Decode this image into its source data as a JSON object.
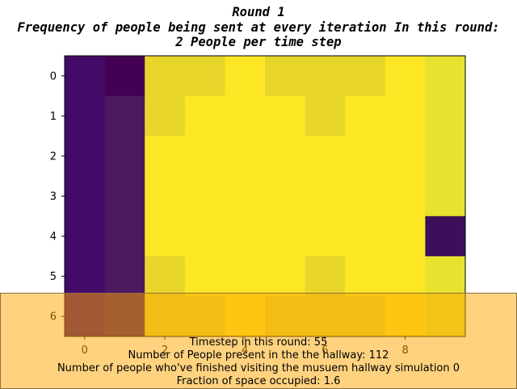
{
  "chart_data": {
    "type": "heatmap",
    "title_lines": [
      "Round 1",
      "Frequency of people being sent at every iteration In this round:",
      "2 People per time step"
    ],
    "x_ticks": [
      0,
      2,
      4,
      6,
      8
    ],
    "y_ticks": [
      0,
      1,
      2,
      3,
      4,
      5,
      6
    ],
    "rows": 7,
    "cols": 10,
    "colors": [
      [
        "#440a68",
        "#440154",
        "#e8d52a",
        "#e8d52a",
        "#fde725",
        "#e8d52a",
        "#e8d52a",
        "#e8d52a",
        "#fde725",
        "#e6e22e"
      ],
      [
        "#440a68",
        "#4d1a60",
        "#e8d52a",
        "#fde725",
        "#fde725",
        "#fde725",
        "#e8d52a",
        "#fde725",
        "#fde725",
        "#e6e22e"
      ],
      [
        "#440a68",
        "#4d1a60",
        "#fde725",
        "#fde725",
        "#fde725",
        "#fde725",
        "#fde725",
        "#fde725",
        "#fde725",
        "#e6e22e"
      ],
      [
        "#440a68",
        "#4d1a60",
        "#fde725",
        "#fde725",
        "#fde725",
        "#fde725",
        "#fde725",
        "#fde725",
        "#fde725",
        "#e6e22e"
      ],
      [
        "#440a68",
        "#4d1a60",
        "#fde725",
        "#fde725",
        "#fde725",
        "#fde725",
        "#fde725",
        "#fde725",
        "#fde725",
        "#3b0f5a"
      ],
      [
        "#440a68",
        "#4d1a60",
        "#e8d52a",
        "#fde725",
        "#fde725",
        "#fde725",
        "#e8d52a",
        "#fde725",
        "#fde725",
        "#e6e22e"
      ],
      [
        "#440a68",
        "#4d1a60",
        "#e8d52a",
        "#e8d52a",
        "#fde725",
        "#e8d52a",
        "#e8d52a",
        "#e8d52a",
        "#fde725",
        "#e6e22e"
      ]
    ]
  },
  "info": {
    "timestep": "Timestep in this round: 55",
    "people_present": "Number of People present in the the hallway: 112",
    "finished": "Number of people who've finished visiting the musuem hallway simulation 0",
    "fraction": "Fraction of space occupied: 1.6"
  },
  "overlay_color": "#ffa500"
}
